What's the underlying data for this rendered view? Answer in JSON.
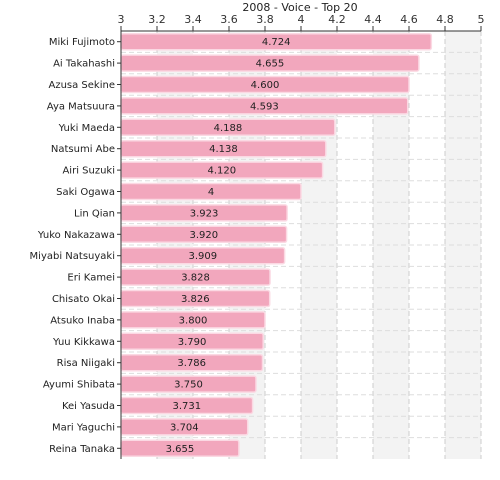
{
  "chart_data": {
    "type": "bar",
    "orientation": "horizontal",
    "title": "2008 - Voice - Top 20",
    "xlabel": "",
    "ylabel": "",
    "xlim": [
      3,
      5
    ],
    "ticks": [
      "3",
      "3.2",
      "3.4",
      "3.6",
      "3.8",
      "4",
      "4.2",
      "4.4",
      "4.6",
      "4.8",
      "5"
    ],
    "grid": true,
    "bar_color": "#f2a7bd",
    "bar_edge_color": "#fbd9e3",
    "categories": [
      "Miki Fujimoto",
      "Ai Takahashi",
      "Azusa Sekine",
      "Aya Matsuura",
      "Yuki Maeda",
      "Natsumi Abe",
      "Airi Suzuki",
      "Saki Ogawa",
      "Lin Qian",
      "Yuko Nakazawa",
      "Miyabi Natsuyaki",
      "Eri Kamei",
      "Chisato Okai",
      "Atsuko Inaba",
      "Yuu Kikkawa",
      "Risa Niigaki",
      "Ayumi Shibata",
      "Kei Yasuda",
      "Mari Yaguchi",
      "Reina Tanaka"
    ],
    "values": [
      4.724,
      4.655,
      4.6,
      4.593,
      4.188,
      4.138,
      4.12,
      4,
      3.923,
      3.92,
      3.909,
      3.828,
      3.826,
      3.8,
      3.79,
      3.786,
      3.75,
      3.731,
      3.704,
      3.655
    ],
    "value_labels": [
      "4.724",
      "4.655",
      "4.600",
      "4.593",
      "4.188",
      "4.138",
      "4.120",
      "4",
      "3.923",
      "3.920",
      "3.909",
      "3.828",
      "3.826",
      "3.800",
      "3.790",
      "3.786",
      "3.750",
      "3.731",
      "3.704",
      "3.655"
    ]
  }
}
